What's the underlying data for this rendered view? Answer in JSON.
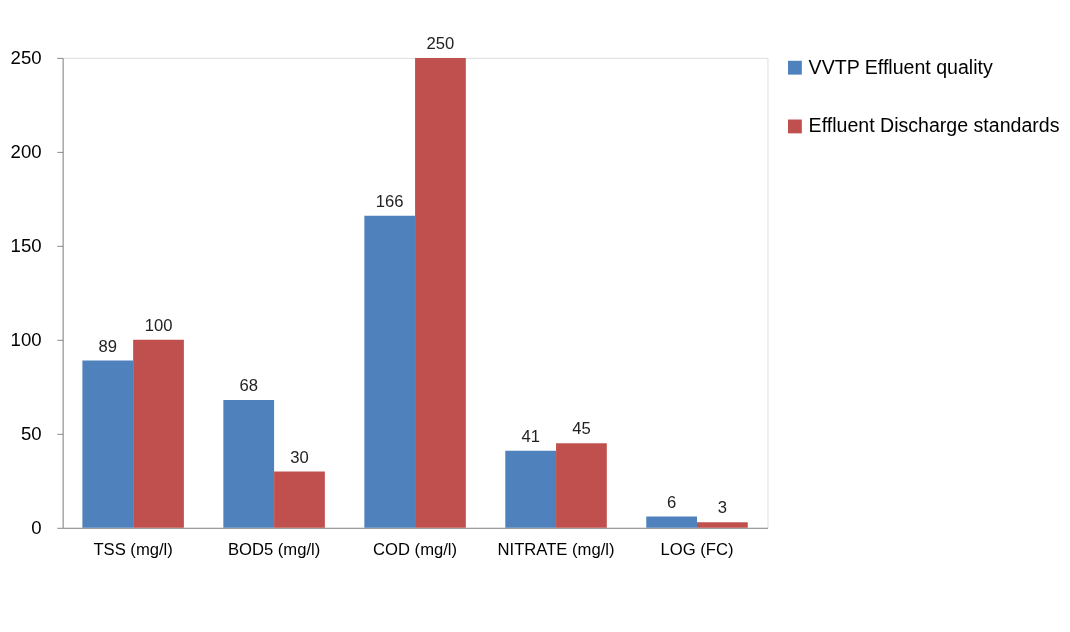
{
  "chart_data": {
    "type": "bar",
    "categories": [
      "TSS (mg/l)",
      "BOD5 (mg/l)",
      "COD (mg/l)",
      "NITRATE (mg/l)",
      "LOG (FC)"
    ],
    "series": [
      {
        "name": "VVTP Effluent  quality",
        "color": "#4f81bd",
        "values": [
          89,
          68,
          166,
          41,
          6
        ]
      },
      {
        "name": "Effluent Discharge standards",
        "color": "#c0504d",
        "values": [
          100,
          30,
          250,
          45,
          3
        ]
      }
    ],
    "ylim": [
      0,
      250
    ],
    "yticks": [
      0,
      50,
      100,
      150,
      200,
      250
    ],
    "grid": false,
    "legend": "right",
    "data_labels": true
  }
}
